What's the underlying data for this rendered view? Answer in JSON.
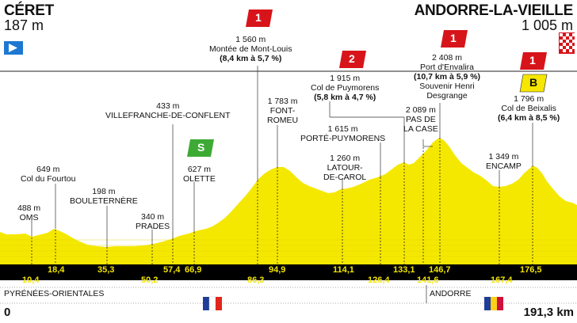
{
  "header": {
    "start_name": "CÉRET",
    "start_alt": "187 m",
    "finish_name": "ANDORRE-LA-VIEILLE",
    "finish_alt": "1 005 m"
  },
  "labels": [
    {
      "lines": [
        "649 m",
        "Col du Fourtou"
      ]
    },
    {
      "lines": [
        "488 m",
        "OMS"
      ]
    },
    {
      "lines": [
        "198 m",
        "BOULETERNÈRE"
      ]
    },
    {
      "lines": [
        "340 m",
        "PRADES"
      ]
    },
    {
      "lines": [
        "433 m",
        "VILLEFRANCHE-DE-CONFLENT"
      ]
    },
    {
      "lines": [
        "627 m",
        "OLETTE"
      ]
    },
    {
      "lines": [
        "1 560 m",
        "Montée de Mont-Louis"
      ],
      "bold": "(8,4 km à 5,7 %)"
    },
    {
      "lines": [
        "1 783 m",
        "FONT-",
        "ROMEU"
      ]
    },
    {
      "lines": [
        "1 915 m",
        "Col de Puymorens"
      ],
      "bold": "(5,8 km à 4,7 %)"
    },
    {
      "lines": [
        "1 615 m",
        "PORTÉ-PUYMORENS"
      ]
    },
    {
      "lines": [
        "1 260 m",
        "LATOUR-",
        "DE-CAROL"
      ]
    },
    {
      "lines": [
        "2 089 m",
        "PAS DE",
        "LA CASE"
      ]
    },
    {
      "lines": [
        "2 408 m",
        "Port d'Envalira"
      ],
      "bold": "(10,7 km à 5,9 %)",
      "extra": [
        "Souvenir Henri",
        "Desgrange"
      ]
    },
    {
      "lines": [
        "1 349 m",
        "ENCAMP"
      ]
    },
    {
      "lines": [
        "1 796 m",
        "Col de Beixalis"
      ],
      "bold": "(6,4 km à 8,5 %)"
    }
  ],
  "km_top": [
    "18,4",
    "35,3",
    "57,4",
    "66,9",
    "94,9",
    "114,1",
    "133,1",
    "146,7",
    "176,5"
  ],
  "km_bottom": [
    "10,4",
    "50,2",
    "86,3",
    "126,4",
    "141,6",
    "167,4"
  ],
  "regions": {
    "left": "PYRÉNÉES-ORIENTALES",
    "right": "ANDORRE"
  },
  "distance": {
    "start": "0",
    "end": "191,3 km"
  },
  "badges": {
    "climb_cat": "1",
    "puymorens_cat": "2",
    "sprint": "S",
    "bonus": "B"
  },
  "colors": {
    "profile": "#f5e800",
    "band": "#000000",
    "cat1": "#d7141a",
    "sprint": "#3daa35",
    "start_flag": "#1e78d2"
  }
}
